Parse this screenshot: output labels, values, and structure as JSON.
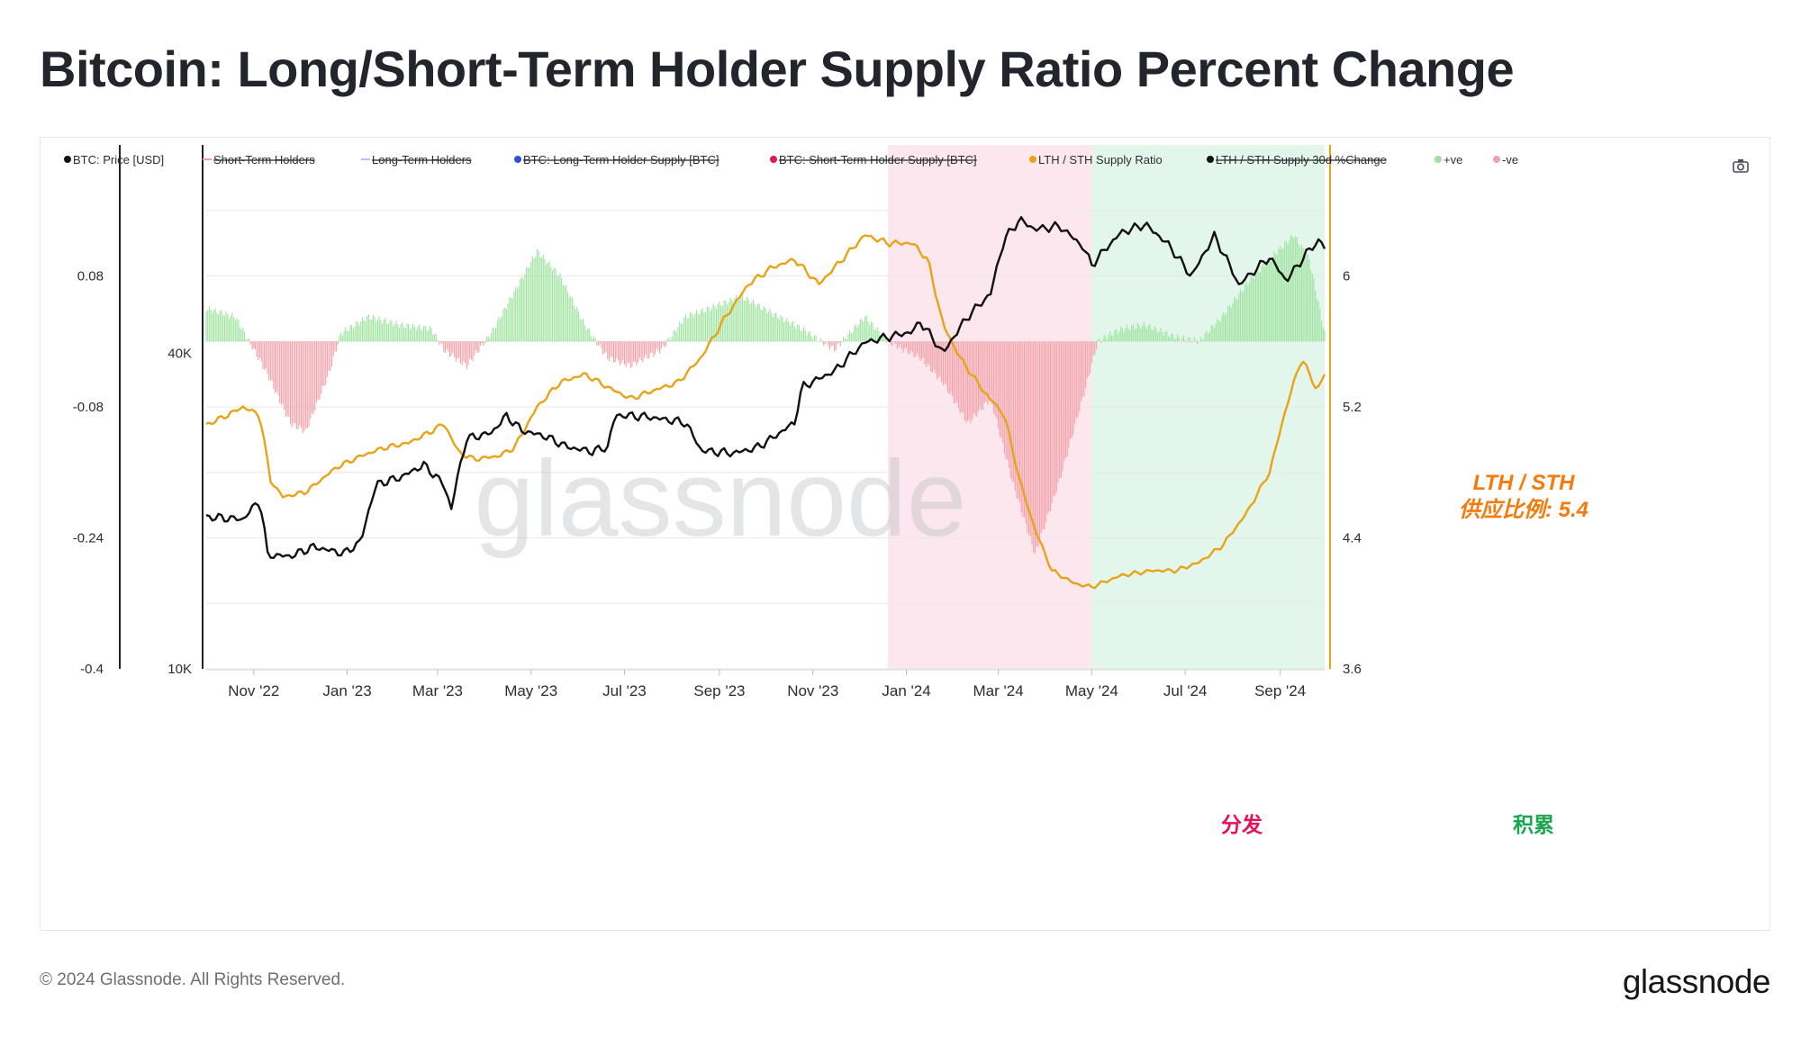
{
  "title": "Bitcoin: Long/Short-Term Holder Supply Ratio Percent Change",
  "footer": {
    "copyright": "© 2024 Glassnode. All Rights Reserved.",
    "logo": "glassnode"
  },
  "watermark": "glassnode",
  "toolbar": {
    "camera_icon": "camera-icon"
  },
  "colors": {
    "price": "#111111",
    "ratio": "#e8a317",
    "positive": "#9ee39e",
    "negative": "#f3a0a8",
    "distribution_bg": "#fde7ee",
    "accumulation_bg": "#e3f6ec",
    "annotation_orange": "#f47a0a",
    "annotation_pink": "#e8105a",
    "annotation_green": "#1aa64f"
  },
  "chart_data": {
    "type": "line",
    "legend": [
      {
        "label": "BTC: Price [USD]",
        "color": "#111111",
        "marker": "dot",
        "hidden": false
      },
      {
        "label": "Short-Term Holders",
        "color": "#f3a0a8",
        "marker": "line",
        "hidden": true
      },
      {
        "label": "Long-Term Holders",
        "color": "#a9c8f0",
        "marker": "line",
        "hidden": true
      },
      {
        "label": "BTC: Long-Term Holder Supply [BTC]",
        "color": "#2f4fd8",
        "marker": "dot",
        "hidden": true
      },
      {
        "label": "BTC: Short-Term Holder Supply [BTC]",
        "color": "#e01a4f",
        "marker": "dot",
        "hidden": true
      },
      {
        "label": "LTH / STH Supply Ratio",
        "color": "#e8a317",
        "marker": "dot",
        "hidden": false
      },
      {
        "label": "LTH / STH Supply 30d %Change",
        "color": "#111111",
        "marker": "dot",
        "hidden": true
      },
      {
        "label": "+ve",
        "color": "#9ee39e",
        "marker": "dot",
        "hidden": false
      },
      {
        "label": "-ve",
        "color": "#f3a0a8",
        "marker": "dot",
        "hidden": false
      }
    ],
    "x_ticks": [
      "Nov '22",
      "Jan '23",
      "Mar '23",
      "May '23",
      "Jul '23",
      "Sep '23",
      "Nov '23",
      "Jan '24",
      "Mar '24",
      "May '24",
      "Jul '24",
      "Sep '24"
    ],
    "x_range": [
      "2022-10-01",
      "2024-09-30"
    ],
    "left_axis_pct": {
      "ticks": [
        "0.08",
        "-0.08",
        "-0.24",
        "-0.4"
      ],
      "range": [
        -0.4,
        0.24
      ]
    },
    "price_axis": {
      "ticks": [
        "40K",
        "10K"
      ],
      "scale": "log",
      "range": [
        10000,
        100000
      ]
    },
    "right_axis_ratio": {
      "ticks": [
        "6",
        "5.2",
        "4.4",
        "3.6"
      ],
      "range": [
        3.6,
        6.8
      ]
    },
    "pct_change_30d": [
      [
        "2022-10-01",
        0.04
      ],
      [
        "2022-10-20",
        0.03
      ],
      [
        "2022-11-10",
        -0.04
      ],
      [
        "2022-11-25",
        -0.1
      ],
      [
        "2022-12-05",
        -0.11
      ],
      [
        "2022-12-20",
        -0.04
      ],
      [
        "2022-12-28",
        0.01
      ],
      [
        "2023-01-15",
        0.03
      ],
      [
        "2023-02-05",
        0.02
      ],
      [
        "2023-02-25",
        0.015
      ],
      [
        "2023-03-05",
        -0.01
      ],
      [
        "2023-03-20",
        -0.03
      ],
      [
        "2023-04-05",
        0.01
      ],
      [
        "2023-04-20",
        0.06
      ],
      [
        "2023-05-05",
        0.11
      ],
      [
        "2023-05-20",
        0.08
      ],
      [
        "2023-06-05",
        0.02
      ],
      [
        "2023-06-20",
        -0.02
      ],
      [
        "2023-07-05",
        -0.03
      ],
      [
        "2023-07-25",
        -0.01
      ],
      [
        "2023-08-10",
        0.03
      ],
      [
        "2023-08-25",
        0.04
      ],
      [
        "2023-09-15",
        0.055
      ],
      [
        "2023-10-05",
        0.035
      ],
      [
        "2023-10-25",
        0.015
      ],
      [
        "2023-11-15",
        -0.01
      ],
      [
        "2023-12-05",
        0.03
      ],
      [
        "2023-12-20",
        0.0
      ],
      [
        "2024-01-10",
        -0.02
      ],
      [
        "2024-01-25",
        -0.05
      ],
      [
        "2024-02-10",
        -0.1
      ],
      [
        "2024-02-25",
        -0.07
      ],
      [
        "2024-03-10",
        -0.17
      ],
      [
        "2024-03-25",
        -0.26
      ],
      [
        "2024-04-10",
        -0.17
      ],
      [
        "2024-04-25",
        -0.07
      ],
      [
        "2024-05-05",
        0.0
      ],
      [
        "2024-05-20",
        0.015
      ],
      [
        "2024-06-05",
        0.02
      ],
      [
        "2024-06-25",
        0.005
      ],
      [
        "2024-07-10",
        0.0
      ],
      [
        "2024-07-25",
        0.03
      ],
      [
        "2024-08-10",
        0.07
      ],
      [
        "2024-08-25",
        0.1
      ],
      [
        "2024-09-10",
        0.13
      ],
      [
        "2024-09-20",
        0.1
      ],
      [
        "2024-09-30",
        0.01
      ]
    ],
    "lth_sth_supply_ratio": [
      [
        "2022-10-01",
        5.09
      ],
      [
        "2022-10-15",
        5.15
      ],
      [
        "2022-10-25",
        5.2
      ],
      [
        "2022-11-05",
        5.15
      ],
      [
        "2022-11-12",
        4.75
      ],
      [
        "2022-11-20",
        4.65
      ],
      [
        "2022-12-05",
        4.68
      ],
      [
        "2022-12-25",
        4.83
      ],
      [
        "2023-01-10",
        4.9
      ],
      [
        "2023-01-25",
        4.95
      ],
      [
        "2023-02-10",
        4.98
      ],
      [
        "2023-02-25",
        5.05
      ],
      [
        "2023-03-05",
        5.1
      ],
      [
        "2023-03-15",
        4.92
      ],
      [
        "2023-03-25",
        4.88
      ],
      [
        "2023-04-10",
        4.9
      ],
      [
        "2023-04-20",
        4.95
      ],
      [
        "2023-05-05",
        5.2
      ],
      [
        "2023-05-20",
        5.35
      ],
      [
        "2023-06-05",
        5.4
      ],
      [
        "2023-06-20",
        5.32
      ],
      [
        "2023-07-05",
        5.25
      ],
      [
        "2023-07-20",
        5.3
      ],
      [
        "2023-08-05",
        5.35
      ],
      [
        "2023-08-20",
        5.5
      ],
      [
        "2023-09-05",
        5.75
      ],
      [
        "2023-09-20",
        5.95
      ],
      [
        "2023-10-05",
        6.05
      ],
      [
        "2023-10-20",
        6.1
      ],
      [
        "2023-11-05",
        5.95
      ],
      [
        "2023-11-20",
        6.1
      ],
      [
        "2023-12-05",
        6.25
      ],
      [
        "2023-12-20",
        6.2
      ],
      [
        "2024-01-05",
        6.2
      ],
      [
        "2024-01-15",
        6.1
      ],
      [
        "2024-01-25",
        5.7
      ],
      [
        "2024-02-05",
        5.5
      ],
      [
        "2024-02-20",
        5.3
      ],
      [
        "2024-03-05",
        5.15
      ],
      [
        "2024-03-15",
        4.75
      ],
      [
        "2024-03-25",
        4.45
      ],
      [
        "2024-04-05",
        4.2
      ],
      [
        "2024-04-20",
        4.12
      ],
      [
        "2024-05-01",
        4.1
      ],
      [
        "2024-05-20",
        4.17
      ],
      [
        "2024-06-10",
        4.2
      ],
      [
        "2024-06-25",
        4.2
      ],
      [
        "2024-07-10",
        4.25
      ],
      [
        "2024-07-25",
        4.35
      ],
      [
        "2024-08-10",
        4.55
      ],
      [
        "2024-08-25",
        4.8
      ],
      [
        "2024-09-05",
        5.2
      ],
      [
        "2024-09-15",
        5.5
      ],
      [
        "2024-09-25",
        5.3
      ],
      [
        "2024-09-30",
        5.4
      ]
    ],
    "btc_price_usd": [
      [
        "2022-10-01",
        19500
      ],
      [
        "2022-10-25",
        19300
      ],
      [
        "2022-11-05",
        21000
      ],
      [
        "2022-11-10",
        16500
      ],
      [
        "2022-11-25",
        16400
      ],
      [
        "2022-12-10",
        17100
      ],
      [
        "2022-12-30",
        16600
      ],
      [
        "2023-01-10",
        17500
      ],
      [
        "2023-01-20",
        22500
      ],
      [
        "2023-02-05",
        23200
      ],
      [
        "2023-02-20",
        24500
      ],
      [
        "2023-03-05",
        22500
      ],
      [
        "2023-03-10",
        20200
      ],
      [
        "2023-03-20",
        27500
      ],
      [
        "2023-04-05",
        28200
      ],
      [
        "2023-04-15",
        30400
      ],
      [
        "2023-04-25",
        28500
      ],
      [
        "2023-05-10",
        27800
      ],
      [
        "2023-05-25",
        26500
      ],
      [
        "2023-06-10",
        26000
      ],
      [
        "2023-06-20",
        26500
      ],
      [
        "2023-06-25",
        30500
      ],
      [
        "2023-07-15",
        30300
      ],
      [
        "2023-08-10",
        29500
      ],
      [
        "2023-08-20",
        26100
      ],
      [
        "2023-09-10",
        25800
      ],
      [
        "2023-09-25",
        26400
      ],
      [
        "2023-10-05",
        27500
      ],
      [
        "2023-10-20",
        29500
      ],
      [
        "2023-10-25",
        34500
      ],
      [
        "2023-11-15",
        37000
      ],
      [
        "2023-12-05",
        42000
      ],
      [
        "2023-12-20",
        43000
      ],
      [
        "2024-01-05",
        44000
      ],
      [
        "2024-01-10",
        46000
      ],
      [
        "2024-01-25",
        40000
      ],
      [
        "2024-02-10",
        47000
      ],
      [
        "2024-02-25",
        52000
      ],
      [
        "2024-03-05",
        66000
      ],
      [
        "2024-03-15",
        72000
      ],
      [
        "2024-03-25",
        69000
      ],
      [
        "2024-04-10",
        70000
      ],
      [
        "2024-04-25",
        64000
      ],
      [
        "2024-05-01",
        59000
      ],
      [
        "2024-05-20",
        68000
      ],
      [
        "2024-06-05",
        70500
      ],
      [
        "2024-06-20",
        64500
      ],
      [
        "2024-07-05",
        56000
      ],
      [
        "2024-07-20",
        67000
      ],
      [
        "2024-08-05",
        54000
      ],
      [
        "2024-08-25",
        61000
      ],
      [
        "2024-09-05",
        55000
      ],
      [
        "2024-09-20",
        63000
      ],
      [
        "2024-09-27",
        66000
      ],
      [
        "2024-09-30",
        63500
      ]
    ],
    "regions": [
      {
        "label": "分发",
        "start": "2023-12-20",
        "end": "2024-05-01",
        "color": "#fde7ee"
      },
      {
        "label": "积累",
        "start": "2024-05-01",
        "end": "2024-09-30",
        "color": "#e3f6ec"
      }
    ],
    "annotation": {
      "line1": "LTH / STH",
      "line2": "供应比例: 5.4"
    }
  }
}
